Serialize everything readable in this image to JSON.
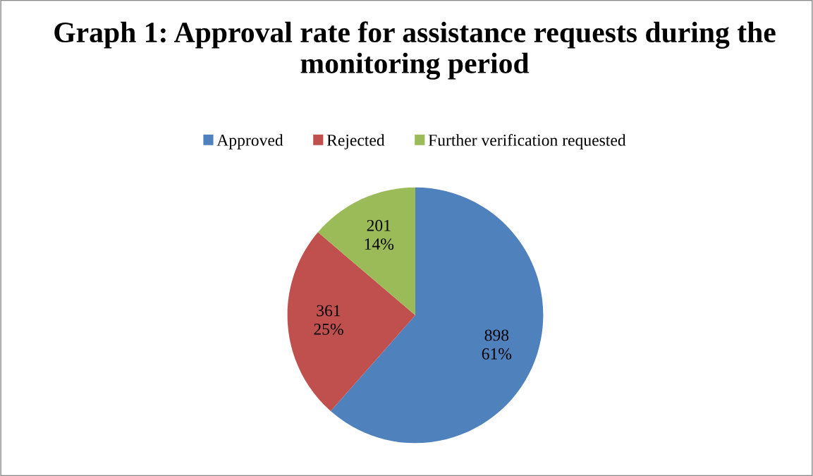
{
  "chart_data": {
    "type": "pie",
    "title": "Graph 1: Approval rate for assistance requests during the monitoring period",
    "categories": [
      "Approved",
      "Rejected",
      "Further verification requested"
    ],
    "values": [
      898,
      361,
      201
    ],
    "colors": [
      "#4f81bd",
      "#c0504d",
      "#9bbb59"
    ],
    "value_labels": [
      "898\n61%",
      "361\n25%",
      "201\n14%"
    ],
    "legend": "top"
  }
}
